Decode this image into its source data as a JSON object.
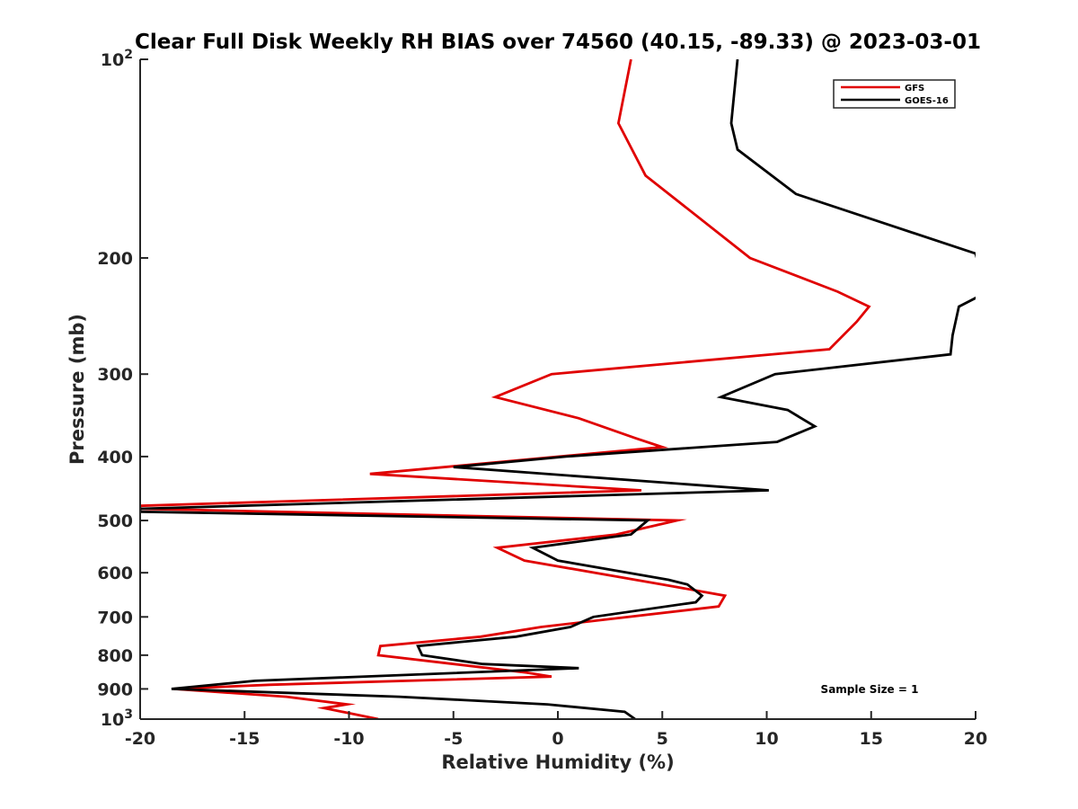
{
  "chart_data": {
    "type": "line",
    "title": "Clear Full Disk Weekly RH BIAS over 74560 (40.15, -89.33) @ 2023-03-01",
    "xlabel": "Relative Humidity (%)",
    "ylabel": "Pressure (mb)",
    "xlim": [
      -20,
      20
    ],
    "ylim": [
      100,
      1000
    ],
    "y_scale": "log",
    "y_reversed": true,
    "grid": false,
    "legend_position": "top-right",
    "x_ticks": [
      {
        "value": -20,
        "label": "-20"
      },
      {
        "value": -15,
        "label": "-15"
      },
      {
        "value": -10,
        "label": "-10"
      },
      {
        "value": -5,
        "label": "-5"
      },
      {
        "value": 0,
        "label": "0"
      },
      {
        "value": 5,
        "label": "5"
      },
      {
        "value": 10,
        "label": "10"
      },
      {
        "value": 15,
        "label": "15"
      },
      {
        "value": 20,
        "label": "20"
      }
    ],
    "y_ticks": [
      {
        "value": 100,
        "base": "10",
        "exp": "2"
      },
      {
        "value": 200,
        "base": "200",
        "exp": ""
      },
      {
        "value": 300,
        "base": "300",
        "exp": ""
      },
      {
        "value": 400,
        "base": "400",
        "exp": ""
      },
      {
        "value": 500,
        "base": "500",
        "exp": ""
      },
      {
        "value": 600,
        "base": "600",
        "exp": ""
      },
      {
        "value": 700,
        "base": "700",
        "exp": ""
      },
      {
        "value": 800,
        "base": "800",
        "exp": ""
      },
      {
        "value": 900,
        "base": "900",
        "exp": ""
      },
      {
        "value": 1000,
        "base": "10",
        "exp": "3"
      }
    ],
    "annotation": "Sample Size = 1",
    "series": [
      {
        "name": "GFS",
        "color": "#e00000",
        "points": [
          [
            3.5,
            100
          ],
          [
            2.9,
            125
          ],
          [
            4.2,
            150
          ],
          [
            9.2,
            200
          ],
          [
            13.4,
            225
          ],
          [
            14.9,
            237
          ],
          [
            14.3,
            250
          ],
          [
            13.0,
            275
          ],
          [
            -0.3,
            300
          ],
          [
            -3.0,
            325
          ],
          [
            1.0,
            350
          ],
          [
            3.7,
            375
          ],
          [
            5.0,
            387
          ],
          [
            -9.0,
            425
          ],
          [
            4.0,
            450
          ],
          [
            -20.0,
            475
          ],
          [
            -20.0,
            480
          ],
          [
            5.7,
            500
          ],
          [
            2.8,
            525
          ],
          [
            -2.9,
            550
          ],
          [
            -1.6,
            575
          ],
          [
            5.0,
            625
          ],
          [
            8.0,
            650
          ],
          [
            7.7,
            675
          ],
          [
            -0.8,
            725
          ],
          [
            -3.7,
            750
          ],
          [
            -8.5,
            775
          ],
          [
            -8.6,
            800
          ],
          [
            -1.5,
            850
          ],
          [
            -0.3,
            862
          ],
          [
            -13.8,
            887
          ],
          [
            -18.4,
            900
          ],
          [
            -13.0,
            925
          ],
          [
            -10.1,
            950
          ],
          [
            -11.2,
            962
          ],
          [
            -8.6,
            1000
          ]
        ]
      },
      {
        "name": "GOES-16",
        "color": "#000000",
        "points": [
          [
            8.6,
            100
          ],
          [
            8.3,
            125
          ],
          [
            8.6,
            137
          ],
          [
            11.4,
            160
          ],
          [
            20.0,
            197
          ],
          [
            20.5,
            225
          ],
          [
            20.0,
            230
          ],
          [
            19.2,
            237
          ],
          [
            18.9,
            262
          ],
          [
            18.8,
            280
          ],
          [
            10.4,
            300
          ],
          [
            7.8,
            325
          ],
          [
            11.0,
            340
          ],
          [
            12.3,
            360
          ],
          [
            10.5,
            380
          ],
          [
            0.4,
            400
          ],
          [
            -5.0,
            415
          ],
          [
            10.1,
            450
          ],
          [
            -20.0,
            480
          ],
          [
            -20.0,
            485
          ],
          [
            4.3,
            500
          ],
          [
            3.5,
            525
          ],
          [
            -1.2,
            550
          ],
          [
            0.0,
            575
          ],
          [
            5.3,
            615
          ],
          [
            6.2,
            625
          ],
          [
            6.9,
            650
          ],
          [
            6.6,
            665
          ],
          [
            1.7,
            700
          ],
          [
            0.6,
            725
          ],
          [
            -2.0,
            750
          ],
          [
            -6.7,
            775
          ],
          [
            -6.5,
            800
          ],
          [
            -3.6,
            825
          ],
          [
            1.0,
            837
          ],
          [
            -14.5,
            875
          ],
          [
            -18.5,
            900
          ],
          [
            -7.6,
            925
          ],
          [
            -0.5,
            950
          ],
          [
            3.2,
            975
          ],
          [
            3.7,
            1000
          ]
        ]
      }
    ]
  }
}
